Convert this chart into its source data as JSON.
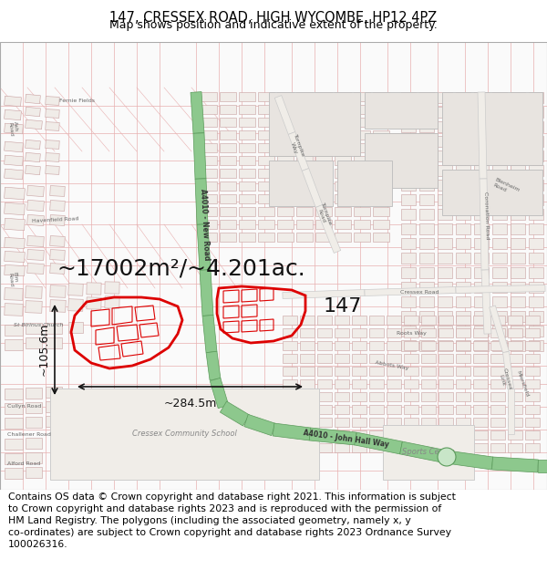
{
  "title_line1": "147, CRESSEX ROAD, HIGH WYCOMBE, HP12 4PZ",
  "title_line2": "Map shows position and indicative extent of the property.",
  "footer_text": "Contains OS data © Crown copyright and database right 2021. This information is subject\nto Crown copyright and database rights 2023 and is reproduced with the permission of\nHM Land Registry. The polygons (including the associated geometry, namely x, y\nco-ordinates) are subject to Crown copyright and database rights 2023 Ordnance Survey\n100026316.",
  "title_fontsize": 10.5,
  "subtitle_fontsize": 9,
  "footer_fontsize": 7.8,
  "fig_width": 6.0,
  "fig_height": 6.25,
  "dpi": 100,
  "map_bg": "#f5f0ee",
  "road_green": "#8dc88d",
  "road_green_edge": "#5a9a5a",
  "road_green_light": "#c8e6c8",
  "building_fill": "#e8e4e0",
  "building_edge": "#c8a0a0",
  "street_color": "#e8b0b0",
  "street_lw": 0.5,
  "property_edge": "#dd0000",
  "property_lw": 2.0,
  "dim_color": "#111111",
  "label_color": "#111111",
  "area_label": "~17002m²/~4.201ac.",
  "dim_label_h": "~105.6m",
  "dim_label_w": "~284.5m",
  "property_label": "147",
  "area_label_fontsize": 18,
  "dim_fontsize": 9,
  "prop_label_fontsize": 16,
  "map_label_fontsize": 5,
  "map_label_color": "#666666"
}
